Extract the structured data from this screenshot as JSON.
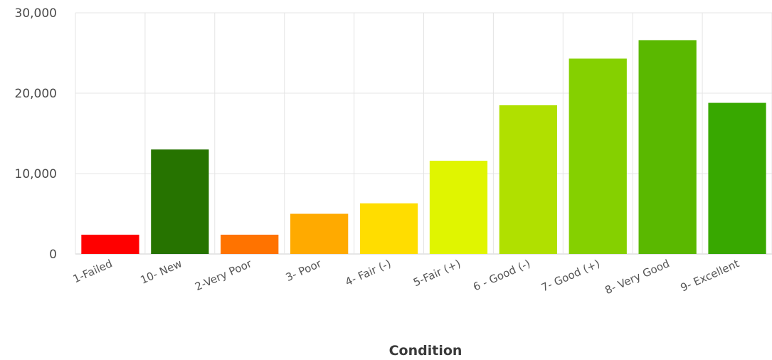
{
  "chart_data": {
    "type": "bar",
    "xlabel": "Condition",
    "ylabel": "",
    "ylim": [
      0,
      30000
    ],
    "yticks": [
      0,
      10000,
      20000,
      30000
    ],
    "ytick_labels": [
      "0",
      "10,000",
      "20,000",
      "30,000"
    ],
    "grid": true,
    "categories": [
      "1-Failed",
      "10- New",
      "2-Very Poor",
      "3- Poor",
      "4- Fair (-)",
      "5-Fair (+)",
      "6 - Good (-)",
      "7- Good (+)",
      "8- Very Good",
      "9- Excellent"
    ],
    "values": [
      2400,
      13000,
      2400,
      5000,
      6300,
      11600,
      18500,
      24300,
      26600,
      18800
    ],
    "colors": [
      "#ff0000",
      "#267300",
      "#ff7300",
      "#ffaa00",
      "#ffdd00",
      "#e0f500",
      "#b0e000",
      "#85d000",
      "#5ab800",
      "#38a800"
    ]
  }
}
